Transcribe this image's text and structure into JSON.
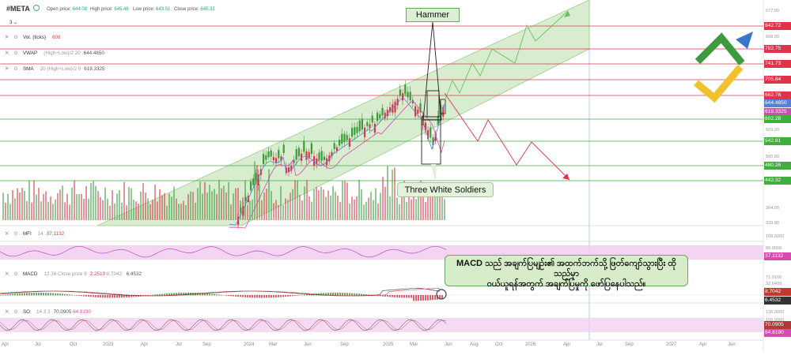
{
  "header": {
    "symbol": "#META",
    "open_label": "Open price:",
    "open_value": "644.08",
    "high_label": "High price:",
    "high_value": "645.46",
    "low_label": "Low price:",
    "low_value": "643.51",
    "close_label": "Close price:",
    "close_value": "645.32"
  },
  "panel_selector": "3",
  "indicators": {
    "vol": {
      "name": "Vol. (ticks)",
      "params": "",
      "value": "608"
    },
    "vwap": {
      "name": "VWAP",
      "params": "(High+Low)/2 20",
      "value": "644.4850"
    },
    "sma": {
      "name": "SMA",
      "params": "20 (High+Low)/2 0",
      "value": "619.3325"
    },
    "mfi": {
      "name": "MFI",
      "params": "14",
      "value": "37.1132"
    },
    "macd": {
      "name": "MACD",
      "params": "12 26 Close price 9",
      "value1": "2.2510",
      "value2": "8.7042",
      "value3": "6.4532"
    },
    "so": {
      "name": "SO",
      "params": "14 3 3",
      "value1": "70.0905",
      "value2": "64.8190"
    }
  },
  "annotations": {
    "hammer": "Hammer",
    "three_white_soldiers": "Three White Soldiers",
    "macd_note_line1": "MACD သည် အချက်ပြမျဉ်း၏ အထက်ဘက်သို့ ဖြတ်ကျော်သွားပြီး ထိုသည်မှာ",
    "macd_note_line2": "ဝယ်ယူရန်အတွက် အချက်ပြမှုကို ဖော်ပြနေပါသည်။"
  },
  "price_axis": {
    "ticks": [
      "677.00",
      "608.00",
      "569.20",
      "500.80",
      "460.80",
      "364.00",
      "339.80"
    ],
    "levels": [
      {
        "label": "842.72",
        "color": "#e0334a"
      },
      {
        "label": "782.75",
        "color": "#e0334a"
      },
      {
        "label": "741.73",
        "color": "#e0334a"
      },
      {
        "label": "705.84",
        "color": "#e0334a"
      },
      {
        "label": "662.78",
        "color": "#e0334a"
      },
      {
        "label": "644.4850",
        "color": "#5b7fd6"
      },
      {
        "label": "619.3325",
        "color": "#d64bb0"
      },
      {
        "label": "602.28",
        "color": "#3fae3f"
      },
      {
        "label": "542.81",
        "color": "#3fae3f"
      },
      {
        "label": "480.26",
        "color": "#3fae3f"
      },
      {
        "label": "442.32",
        "color": "#3fae3f"
      }
    ]
  },
  "mfi_axis": {
    "ticks": [
      "108.0000",
      "80.0000",
      "60.0000"
    ],
    "badge": "37.1132"
  },
  "macd_axis": {
    "ticks": [
      "71.9160",
      "32.6400",
      "-1.0000"
    ],
    "badges": [
      "8.7042",
      "6.4532"
    ]
  },
  "so_axis": {
    "ticks": [
      "136.0000",
      "106.0000",
      "0.0000"
    ],
    "badges": [
      "70.0905",
      "64.8190"
    ]
  },
  "time_axis": [
    "Apr",
    "Jul",
    "Oct",
    "2023",
    "Apr",
    "Jul",
    "Sep",
    "2024",
    "Mar",
    "Jun",
    "Sep",
    "2025",
    "Mar",
    "Jun",
    "Aug",
    "Oct",
    "2026",
    "Apr",
    "Jul",
    "Sep",
    "2027",
    "Apr",
    "Jun"
  ],
  "colors": {
    "bull": "#3c9a3c",
    "bear": "#d23a46",
    "channel": "#b8dea8",
    "resistance": "#e0334a",
    "support": "#3fae3f",
    "vwap": "#5b7fd6",
    "sma": "#d64bb0"
  }
}
